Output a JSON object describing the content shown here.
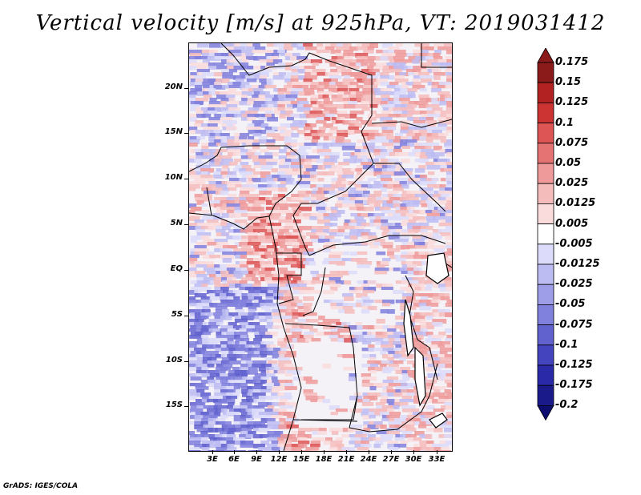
{
  "title": "Vertical velocity [m/s] at 925hPa, VT: 2019031412",
  "footer": "GrADS: IGES/COLA",
  "map": {
    "variable": "Vertical velocity",
    "units": "m/s",
    "level": "925hPa",
    "valid_time": "2019031412",
    "lat_labels": [
      "20N",
      "15N",
      "10N",
      "5N",
      "EQ",
      "5S",
      "10S",
      "15S"
    ],
    "lon_labels": [
      "3E",
      "6E",
      "9E",
      "12E",
      "15E",
      "18E",
      "21E",
      "24E",
      "27E",
      "30E",
      "33E"
    ]
  },
  "colorbar": {
    "labels": [
      "0.175",
      "0.15",
      "0.125",
      "0.1",
      "0.075",
      "0.05",
      "0.025",
      "0.0125",
      "0.005",
      "-0.005",
      "-0.0125",
      "-0.025",
      "-0.05",
      "-0.075",
      "-0.1",
      "-0.125",
      "-0.175",
      "-0.2"
    ],
    "colors": [
      "#8b1a1a",
      "#b22222",
      "#cc3333",
      "#dd5555",
      "#e57373",
      "#ee9a9a",
      "#f5bcbc",
      "#fadcdc",
      "#ffffff",
      "#dcdcfa",
      "#bcbcf2",
      "#9e9ee8",
      "#8080dd",
      "#6262cf",
      "#4444bf",
      "#2a2aa8",
      "#1a1a8b",
      "#0d0d70"
    ]
  }
}
